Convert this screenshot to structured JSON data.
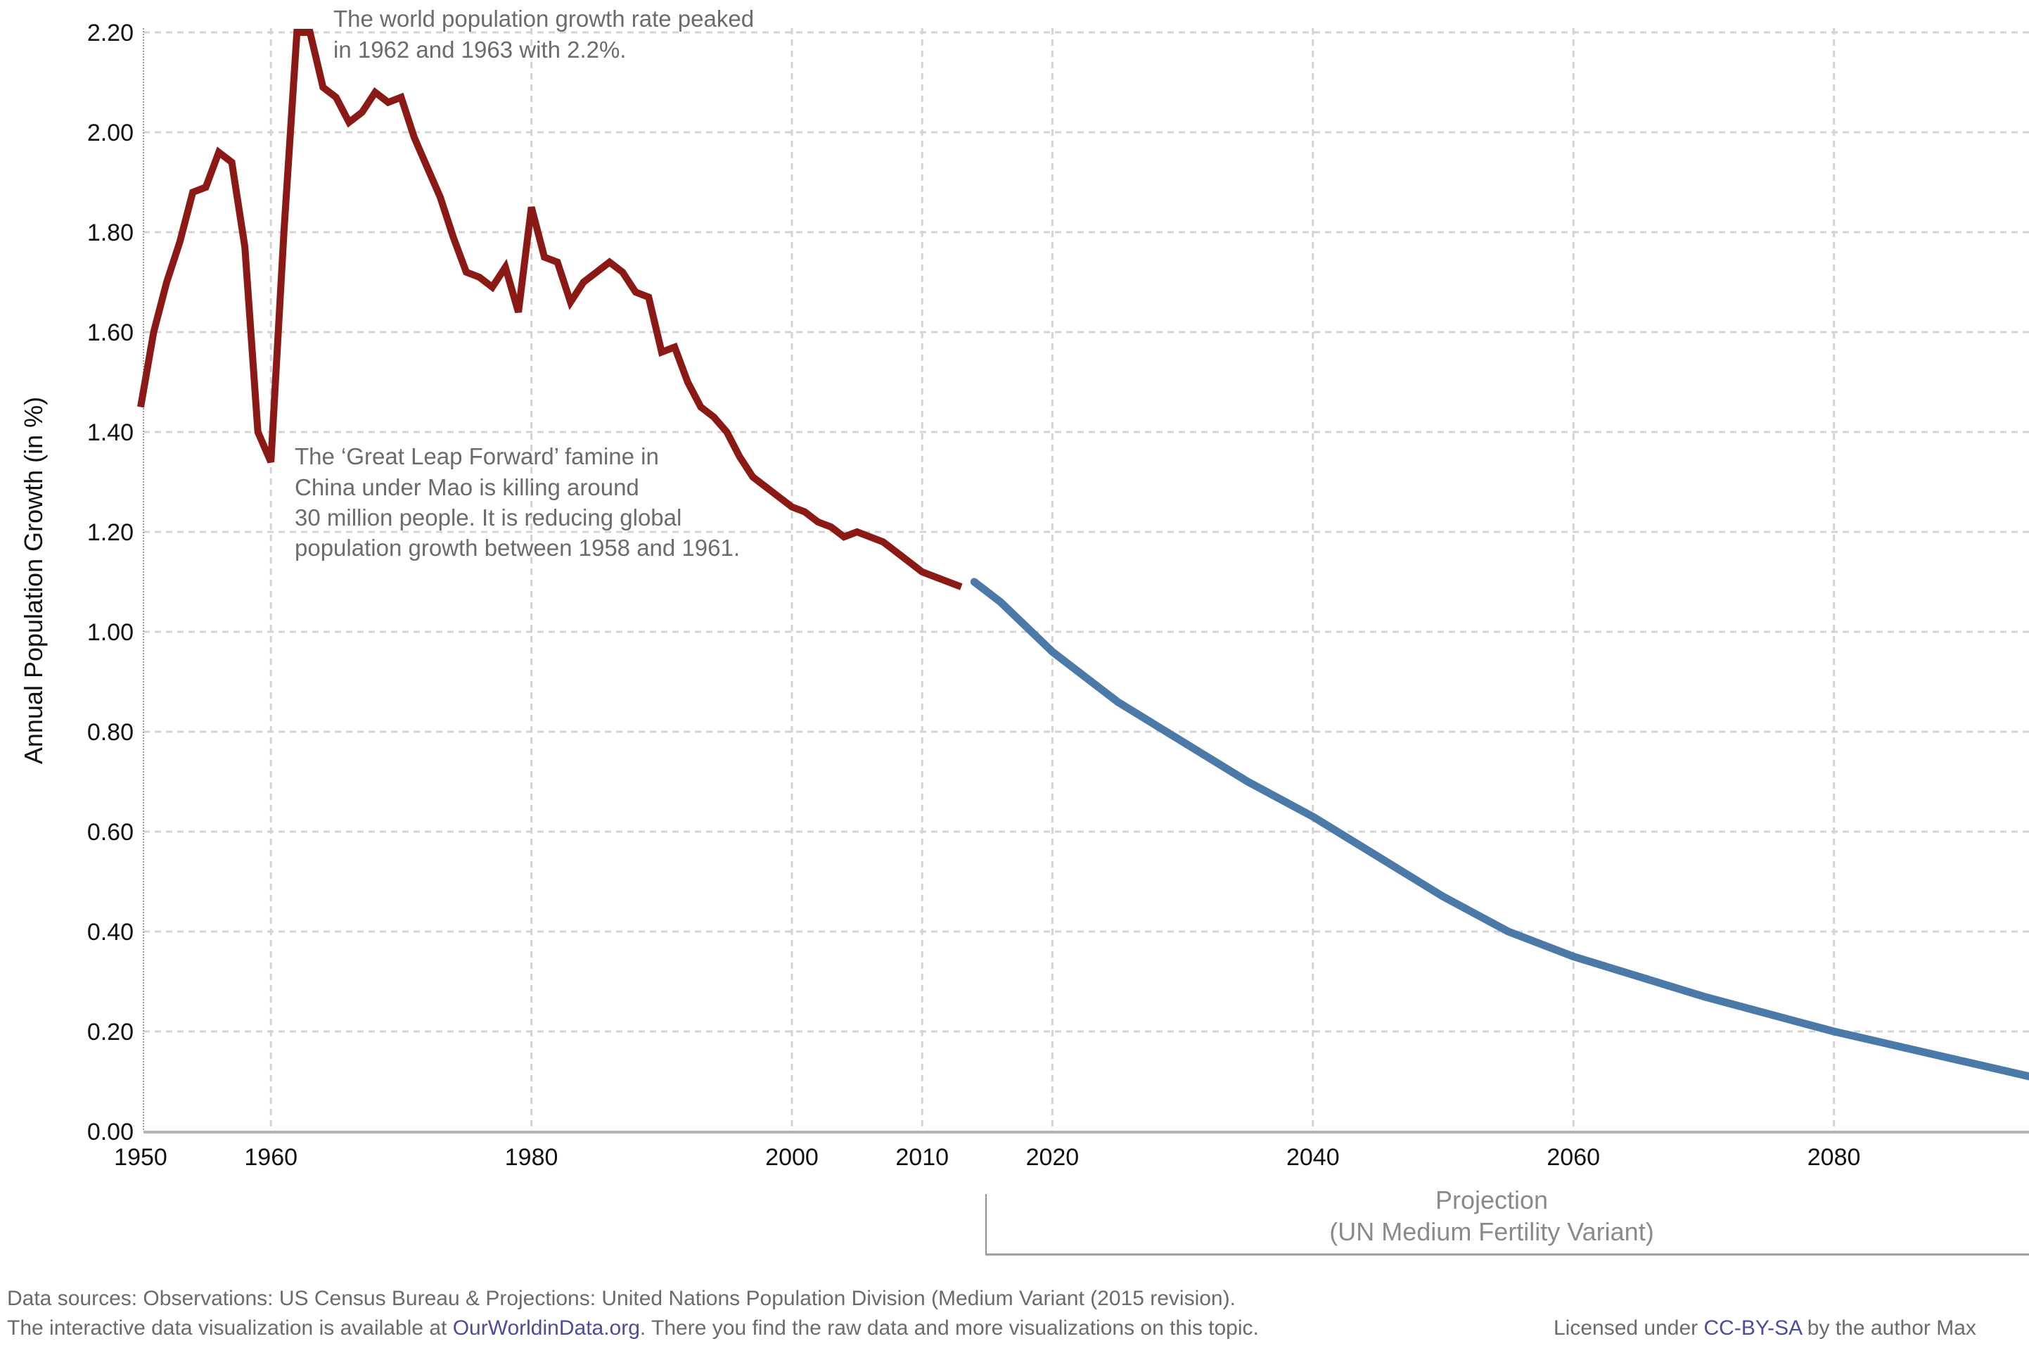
{
  "chart_data": {
    "type": "line",
    "title": "",
    "xlabel": "",
    "ylabel": "Annual Population Growth (in %)",
    "xlim": [
      1950,
      2095
    ],
    "ylim": [
      0,
      2.2
    ],
    "grid": true,
    "x_ticks": [
      "1950",
      "1960",
      "1980",
      "2000",
      "2010",
      "2020",
      "2040",
      "2060",
      "2080"
    ],
    "y_ticks": [
      "0.00",
      "0.20",
      "0.40",
      "0.60",
      "0.80",
      "1.00",
      "1.20",
      "1.40",
      "1.60",
      "1.80",
      "2.00",
      "2.20"
    ],
    "series": [
      {
        "name": "Observations",
        "color": "#8b1a17",
        "x": [
          1950,
          1951,
          1952,
          1953,
          1954,
          1955,
          1956,
          1957,
          1958,
          1959,
          1960,
          1961,
          1962,
          1963,
          1964,
          1965,
          1966,
          1967,
          1968,
          1969,
          1970,
          1971,
          1972,
          1973,
          1974,
          1975,
          1976,
          1977,
          1978,
          1979,
          1980,
          1981,
          1982,
          1983,
          1984,
          1985,
          1986,
          1987,
          1988,
          1989,
          1990,
          1991,
          1992,
          1993,
          1994,
          1995,
          1996,
          1997,
          1998,
          1999,
          2000,
          2001,
          2002,
          2003,
          2004,
          2005,
          2006,
          2007,
          2008,
          2009,
          2010,
          2011,
          2012,
          2013
        ],
        "values": [
          1.45,
          1.6,
          1.7,
          1.78,
          1.88,
          1.89,
          1.96,
          1.94,
          1.77,
          1.4,
          1.34,
          1.8,
          2.2,
          2.2,
          2.09,
          2.07,
          2.02,
          2.04,
          2.08,
          2.06,
          2.07,
          1.99,
          1.93,
          1.87,
          1.79,
          1.72,
          1.71,
          1.69,
          1.73,
          1.64,
          1.85,
          1.75,
          1.74,
          1.66,
          1.7,
          1.72,
          1.74,
          1.72,
          1.68,
          1.67,
          1.56,
          1.57,
          1.5,
          1.45,
          1.43,
          1.4,
          1.35,
          1.31,
          1.29,
          1.27,
          1.25,
          1.24,
          1.22,
          1.21,
          1.19,
          1.2,
          1.19,
          1.18,
          1.16,
          1.14,
          1.12,
          1.11,
          1.1,
          1.09
        ]
      },
      {
        "name": "Projection",
        "color": "#4b79a8",
        "x": [
          2014,
          2016,
          2018,
          2020,
          2022,
          2025,
          2030,
          2035,
          2040,
          2045,
          2050,
          2055,
          2060,
          2065,
          2070,
          2075,
          2080,
          2085,
          2090,
          2095
        ],
        "values": [
          1.1,
          1.06,
          1.01,
          0.96,
          0.92,
          0.86,
          0.78,
          0.7,
          0.63,
          0.55,
          0.47,
          0.4,
          0.35,
          0.31,
          0.27,
          0.235,
          0.2,
          0.17,
          0.14,
          0.11
        ]
      }
    ],
    "annotations": {
      "peak": [
        "The world population growth rate peaked",
        "in 1962 and 1963 with 2.2%."
      ],
      "famine": [
        "The ‘Great Leap Forward’ famine in",
        "China under Mao is killing around",
        "30 million people. It is reducing global",
        "population growth between 1958 and 1961."
      ],
      "projection": [
        "Projection",
        "(UN Medium Fertility Variant)"
      ]
    }
  },
  "footer": {
    "line1": "Data sources: Observations: US Census Bureau & Projections: United Nations Population Division (Medium Variant (2015 revision).",
    "line2_pre": "The interactive data visualization is available at ",
    "line2_link": "OurWorldinData.org",
    "line2_post": ". There you find the raw data and more visualizations on this topic.",
    "license_pre": "Licensed under ",
    "license_link": "CC-BY-SA",
    "license_post": " by the author Max"
  }
}
